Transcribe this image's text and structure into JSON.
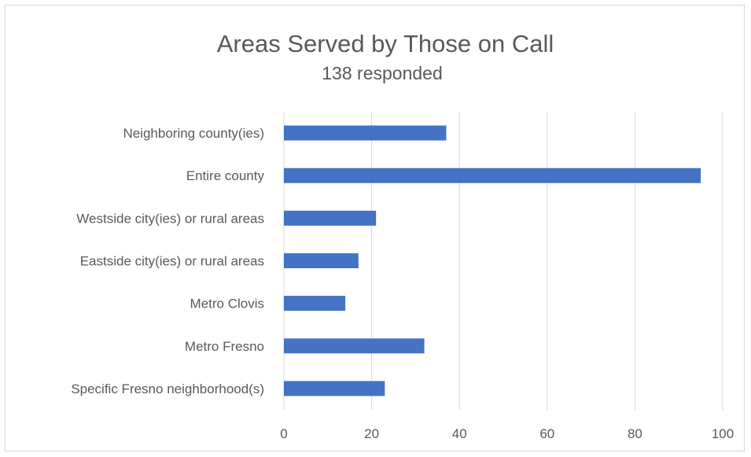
{
  "chart_data": {
    "type": "bar",
    "orientation": "horizontal",
    "title": "Areas Served by Those on Call",
    "subtitle": "138 responded",
    "categories": [
      "Neighboring county(ies)",
      "Entire county",
      "Westside city(ies) or rural areas",
      "Eastside city(ies) or rural areas",
      "Metro Clovis",
      "Metro Fresno",
      "Specific Fresno neighborhood(s)"
    ],
    "values": [
      37,
      95,
      21,
      17,
      14,
      32,
      23
    ],
    "xlim": [
      0,
      100
    ],
    "x_ticks": [
      0,
      20,
      40,
      60,
      80,
      100
    ],
    "grid": true,
    "legend": "none",
    "bar_color": "#4472c4",
    "grid_color": "#d9d9d9"
  }
}
